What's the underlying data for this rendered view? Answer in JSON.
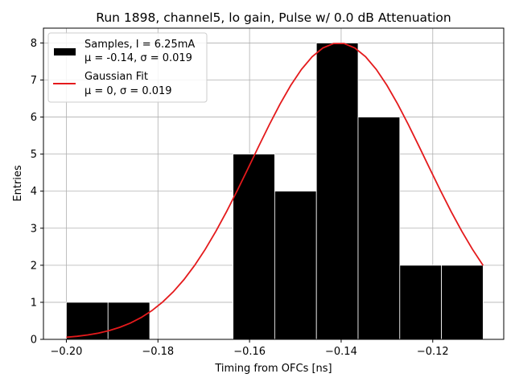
{
  "chart_data": {
    "type": "bar",
    "title": "Run 1898, channel5, lo gain, Pulse w/ 0.0 dB Attenuation",
    "xlabel": "Timing from OFCs [ns]",
    "ylabel": "Entries",
    "xlim": [
      -0.205,
      -0.1045
    ],
    "ylim": [
      0,
      8.4
    ],
    "grid": true,
    "xticks": [
      -0.2,
      -0.18,
      -0.16,
      -0.14,
      -0.12
    ],
    "xtick_labels": [
      "−0.20",
      "−0.18",
      "−0.16",
      "−0.14",
      "−0.12"
    ],
    "yticks": [
      0,
      1,
      2,
      3,
      4,
      5,
      6,
      7,
      8
    ],
    "ytick_labels": [
      "0",
      "1",
      "2",
      "3",
      "4",
      "5",
      "6",
      "7",
      "8"
    ],
    "histogram": {
      "name": "Samples, I = 6.25mA",
      "stats": "μ = -0.14, σ = 0.019",
      "color": "#000000",
      "bins": [
        {
          "x0": -0.2,
          "x1": -0.1909,
          "count": 1
        },
        {
          "x0": -0.1909,
          "x1": -0.1818,
          "count": 1
        },
        {
          "x0": -0.1818,
          "x1": -0.1727,
          "count": 0
        },
        {
          "x0": -0.1727,
          "x1": -0.1636,
          "count": 0
        },
        {
          "x0": -0.1636,
          "x1": -0.1545,
          "count": 5
        },
        {
          "x0": -0.1545,
          "x1": -0.1454,
          "count": 4
        },
        {
          "x0": -0.1454,
          "x1": -0.1363,
          "count": 8
        },
        {
          "x0": -0.1363,
          "x1": -0.1272,
          "count": 6
        },
        {
          "x0": -0.1272,
          "x1": -0.1181,
          "count": 2
        },
        {
          "x0": -0.1181,
          "x1": -0.109,
          "count": 2
        }
      ]
    },
    "fit": {
      "name": "Gaussian Fit",
      "stats": "μ = 0, σ = 0.019",
      "color": "#e41a1c",
      "amplitude": 8.0,
      "center": -0.1405,
      "sigma": 0.0189,
      "x_range": [
        -0.2,
        -0.109
      ],
      "n_points": 40
    },
    "legend_position": "top-left"
  }
}
